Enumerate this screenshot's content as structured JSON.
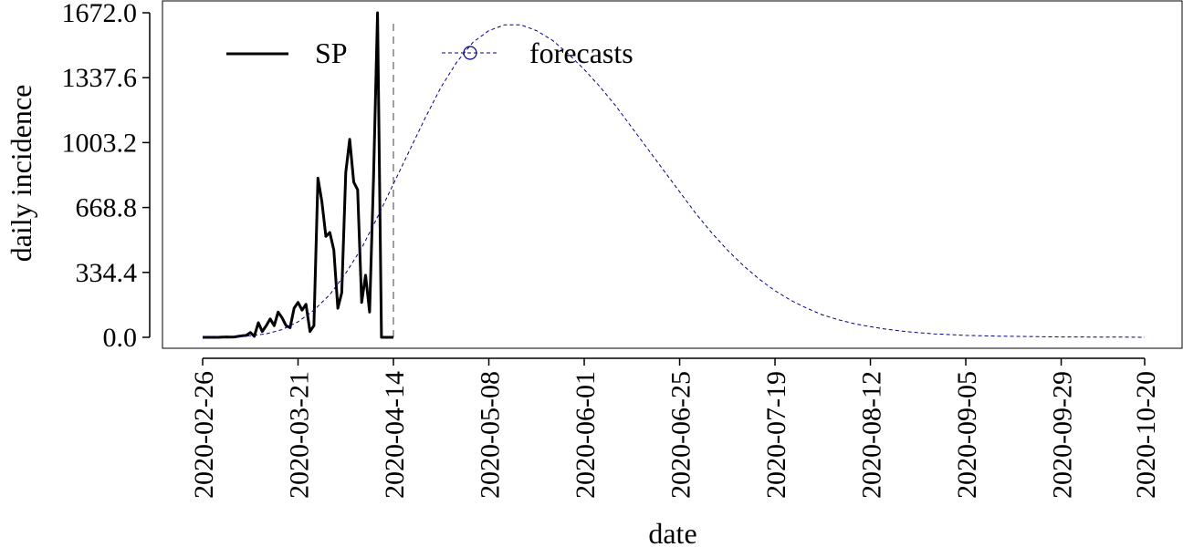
{
  "chart_data": {
    "type": "line",
    "title": "",
    "xlabel": "date",
    "ylabel": "daily incidence",
    "ylim": [
      0,
      1672
    ],
    "y_ticks": [
      "0.0",
      "334.4",
      "668.8",
      "1003.2",
      "1337.6",
      "1672.0"
    ],
    "y_tick_values": [
      0,
      334.4,
      668.8,
      1003.2,
      1337.6,
      1672.0
    ],
    "x_start_date": "2020-02-26",
    "x_ticks": [
      "2020-02-26",
      "2020-03-21",
      "2020-04-14",
      "2020-05-08",
      "2020-06-01",
      "2020-06-25",
      "2020-07-19",
      "2020-08-12",
      "2020-09-05",
      "2020-09-29",
      "2020-10-20"
    ],
    "x_tick_days": [
      0,
      24,
      48,
      72,
      96,
      120,
      144,
      168,
      192,
      216,
      237
    ],
    "forecast_start_day": 48,
    "legend_position": "top-left",
    "legend": [
      "SP",
      "forecasts"
    ],
    "series": [
      {
        "name": "SP",
        "style": "solid",
        "color": "#000000",
        "x_days": [
          0,
          1,
          2,
          3,
          4,
          5,
          6,
          7,
          8,
          9,
          10,
          11,
          12,
          13,
          14,
          15,
          16,
          17,
          18,
          19,
          20,
          21,
          22,
          23,
          24,
          25,
          26,
          27,
          28,
          29,
          30,
          31,
          32,
          33,
          34,
          35,
          36,
          37,
          38,
          39,
          40,
          41,
          42,
          43,
          44,
          45,
          46,
          47,
          48
        ],
        "values": [
          0,
          0,
          0,
          0,
          0,
          1,
          2,
          1,
          2,
          5,
          8,
          10,
          25,
          5,
          75,
          30,
          60,
          95,
          60,
          130,
          100,
          60,
          50,
          150,
          180,
          140,
          170,
          30,
          60,
          820,
          700,
          520,
          540,
          450,
          150,
          230,
          850,
          1020,
          800,
          760,
          180,
          320,
          130,
          820,
          1672,
          0,
          0,
          0,
          0
        ]
      },
      {
        "name": "forecasts",
        "style": "dashed",
        "color": "#00008b",
        "x_days": [
          0,
          4,
          8,
          12,
          16,
          20,
          24,
          28,
          32,
          36,
          40,
          44,
          48,
          52,
          56,
          60,
          64,
          68,
          72,
          76,
          80,
          84,
          88,
          92,
          96,
          100,
          104,
          108,
          112,
          116,
          120,
          124,
          128,
          132,
          136,
          140,
          144,
          148,
          152,
          156,
          160,
          164,
          168,
          172,
          176,
          180,
          184,
          188,
          192,
          196,
          200,
          204,
          208,
          212,
          216,
          220,
          224,
          228,
          232,
          237
        ],
        "values": [
          0,
          1,
          3,
          8,
          18,
          40,
          80,
          140,
          220,
          330,
          460,
          620,
          790,
          960,
          1130,
          1290,
          1420,
          1520,
          1580,
          1610,
          1610,
          1580,
          1530,
          1460,
          1380,
          1290,
          1190,
          1080,
          970,
          860,
          750,
          640,
          540,
          450,
          370,
          300,
          240,
          190,
          150,
          115,
          90,
          70,
          55,
          42,
          32,
          24,
          18,
          14,
          10,
          8,
          6,
          5,
          4,
          3,
          2,
          2,
          1,
          1,
          1,
          0
        ]
      }
    ]
  }
}
